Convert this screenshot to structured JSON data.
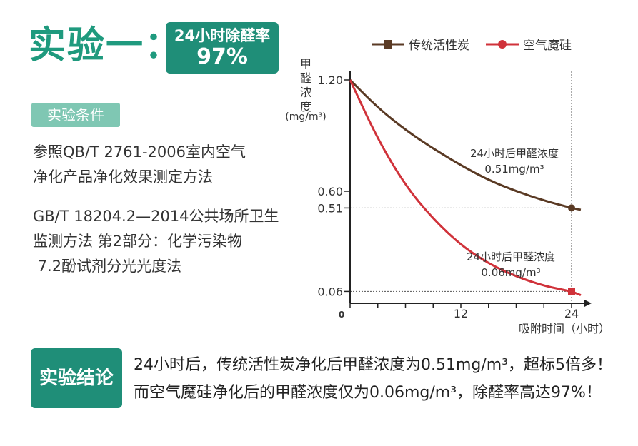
{
  "heading": "实验一：",
  "badge": {
    "line1": "24小时除醛率",
    "line2": "97%"
  },
  "conditions": {
    "tag": "实验条件",
    "lines": [
      "参照QB/T 2761-2006室内空气",
      "净化产品净化效果测定方法",
      "GB/T 18204.2—2014公共场所卫生",
      "监测方法 第2部分：化学污染物",
      " 7.2酚试剂分光光度法"
    ]
  },
  "conclusion": {
    "tag": "实验结论",
    "line1": "24小时后，传统活性炭净化后甲醛浓度为0.51mg/m³，超标5倍多！",
    "line2": "而空气魔硅净化后的甲醛浓度仅为0.06mg/m³，除醛率高达97%！"
  },
  "chart_data": {
    "type": "line",
    "ylabel_chars": [
      "甲",
      "醛",
      "浓",
      "度"
    ],
    "ylabel_unit": "(mg/m³)",
    "xlabel": "吸附时间（小时）",
    "x_ticks": [
      "0",
      "12",
      "24"
    ],
    "y_ticks": [
      1.2,
      0.6,
      0.51,
      0.06
    ],
    "y_tick_labels": [
      "1.20",
      "0.60",
      "0.51",
      "0.06"
    ],
    "xlim": [
      0,
      25
    ],
    "ylim": [
      0,
      1.3
    ],
    "series": [
      {
        "name": "传统活性炭",
        "color": "#5a3a24",
        "marker": "square",
        "x": [
          0,
          3,
          6,
          9,
          12,
          15,
          18,
          21,
          24,
          25
        ],
        "y": [
          1.2,
          1.05,
          0.93,
          0.83,
          0.74,
          0.66,
          0.6,
          0.55,
          0.51,
          0.5
        ],
        "end_marker": "circle",
        "annotation": {
          "line1": "24小时后甲醛浓度",
          "line2": "0.51mg/m³"
        }
      },
      {
        "name": "空气魔硅",
        "color": "#d0323a",
        "marker": "circle",
        "x": [
          0,
          3,
          6,
          9,
          12,
          15,
          18,
          21,
          24,
          25
        ],
        "y": [
          1.2,
          0.88,
          0.63,
          0.45,
          0.31,
          0.21,
          0.14,
          0.09,
          0.06,
          0.04
        ],
        "end_marker": "square",
        "annotation": {
          "line1": "24小时后甲醛浓度",
          "line2": "0.06mg/m³"
        }
      }
    ]
  }
}
